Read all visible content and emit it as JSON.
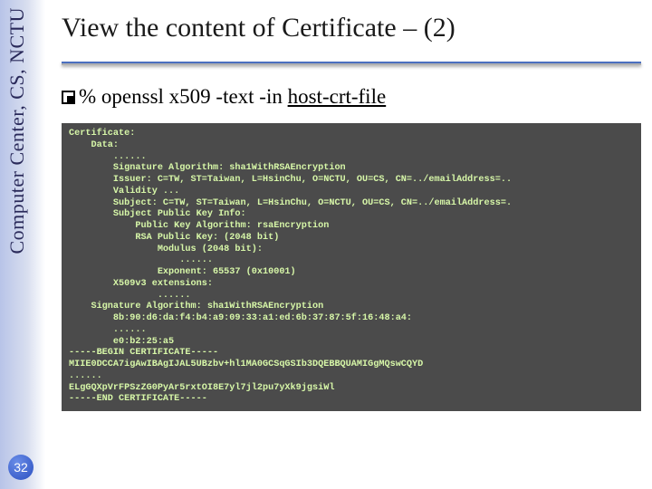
{
  "sidebar": {
    "label": "Computer Center, CS, NCTU",
    "text_color": "#2a2a5a",
    "gradient_from": "#b8c4e8",
    "gradient_to": "#ffffff",
    "page_number": "32"
  },
  "title": "View the content of Certificate – (2)",
  "command": {
    "prefix": "% openssl x509 -text -in ",
    "file": "host-crt-file"
  },
  "cert": {
    "background": "#4b4b4b",
    "text_color": "#d7f7a8",
    "lines": [
      "Certificate:",
      "    Data:",
      "        ......",
      "        Signature Algorithm: sha1WithRSAEncryption",
      "        Issuer: C=TW, ST=Taiwan, L=HsinChu, O=NCTU, OU=CS, CN=../emailAddress=..",
      "        Validity ...",
      "        Subject: C=TW, ST=Taiwan, L=HsinChu, O=NCTU, OU=CS, CN=../emailAddress=.",
      "        Subject Public Key Info:",
      "            Public Key Algorithm: rsaEncryption",
      "            RSA Public Key: (2048 bit)",
      "                Modulus (2048 bit):",
      "                    ......",
      "                Exponent: 65537 (0x10001)",
      "        X509v3 extensions:",
      "                ......",
      "    Signature Algorithm: sha1WithRSAEncryption",
      "        8b:90:d6:da:f4:b4:a9:09:33:a1:ed:6b:37:87:5f:16:48:a4:",
      "        ......",
      "        e0:b2:25:a5",
      "-----BEGIN CERTIFICATE-----",
      "MIIE0DCCA7igAwIBAgIJAL5UBzbv+hl1MA0GCSqGSIb3DQEBBQUAMIGgMQswCQYD",
      "......",
      "ELgGQXpVrFPSzZG0PyAr5rxtOI8E7yl7jl2pu7yXk9jgsiWl",
      "-----END CERTIFICATE-----"
    ]
  }
}
